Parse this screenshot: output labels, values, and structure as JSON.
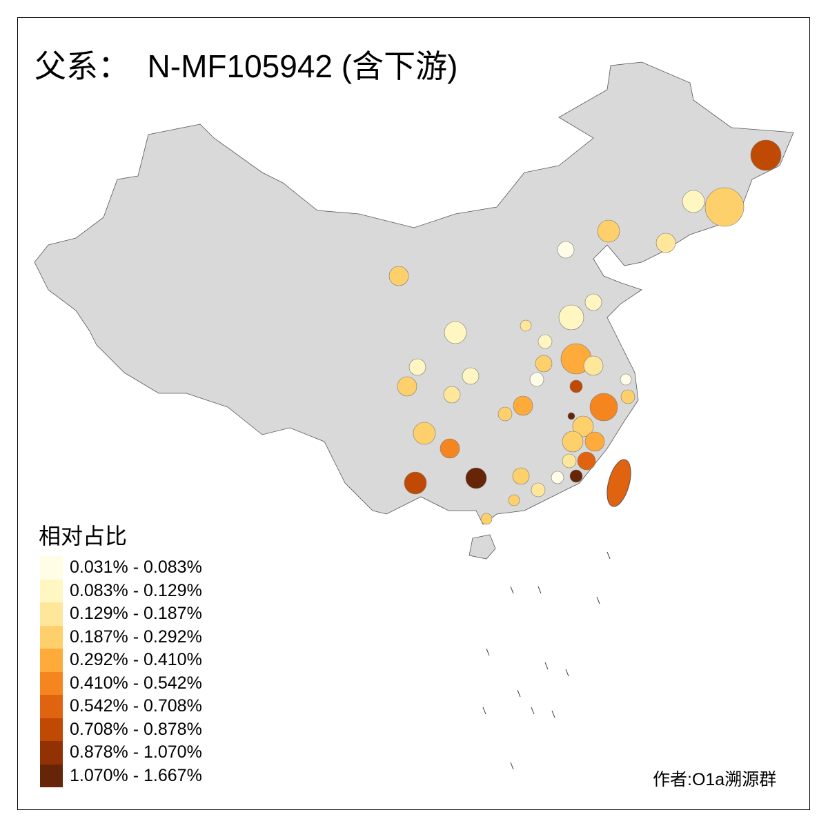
{
  "title": "父系：  N-MF105942 (含下游)",
  "legend": {
    "title": "相对占比",
    "items": [
      {
        "label": "0.031% - 0.083%",
        "color": "#fffde6"
      },
      {
        "label": "0.083% - 0.129%",
        "color": "#fff6c1"
      },
      {
        "label": "0.129% - 0.187%",
        "color": "#fee79b"
      },
      {
        "label": "0.187% - 0.292%",
        "color": "#fed06b"
      },
      {
        "label": "0.292% - 0.410%",
        "color": "#feab3b"
      },
      {
        "label": "0.410% - 0.542%",
        "color": "#f5861f"
      },
      {
        "label": "0.542% - 0.708%",
        "color": "#e0640f"
      },
      {
        "label": "0.708% - 0.878%",
        "color": "#c04a03"
      },
      {
        "label": "0.878% - 1.070%",
        "color": "#923204"
      },
      {
        "label": "1.070% - 1.667%",
        "color": "#662506"
      }
    ]
  },
  "base_color": "#d9d9d9",
  "author": "作者:O1a溯源群"
}
